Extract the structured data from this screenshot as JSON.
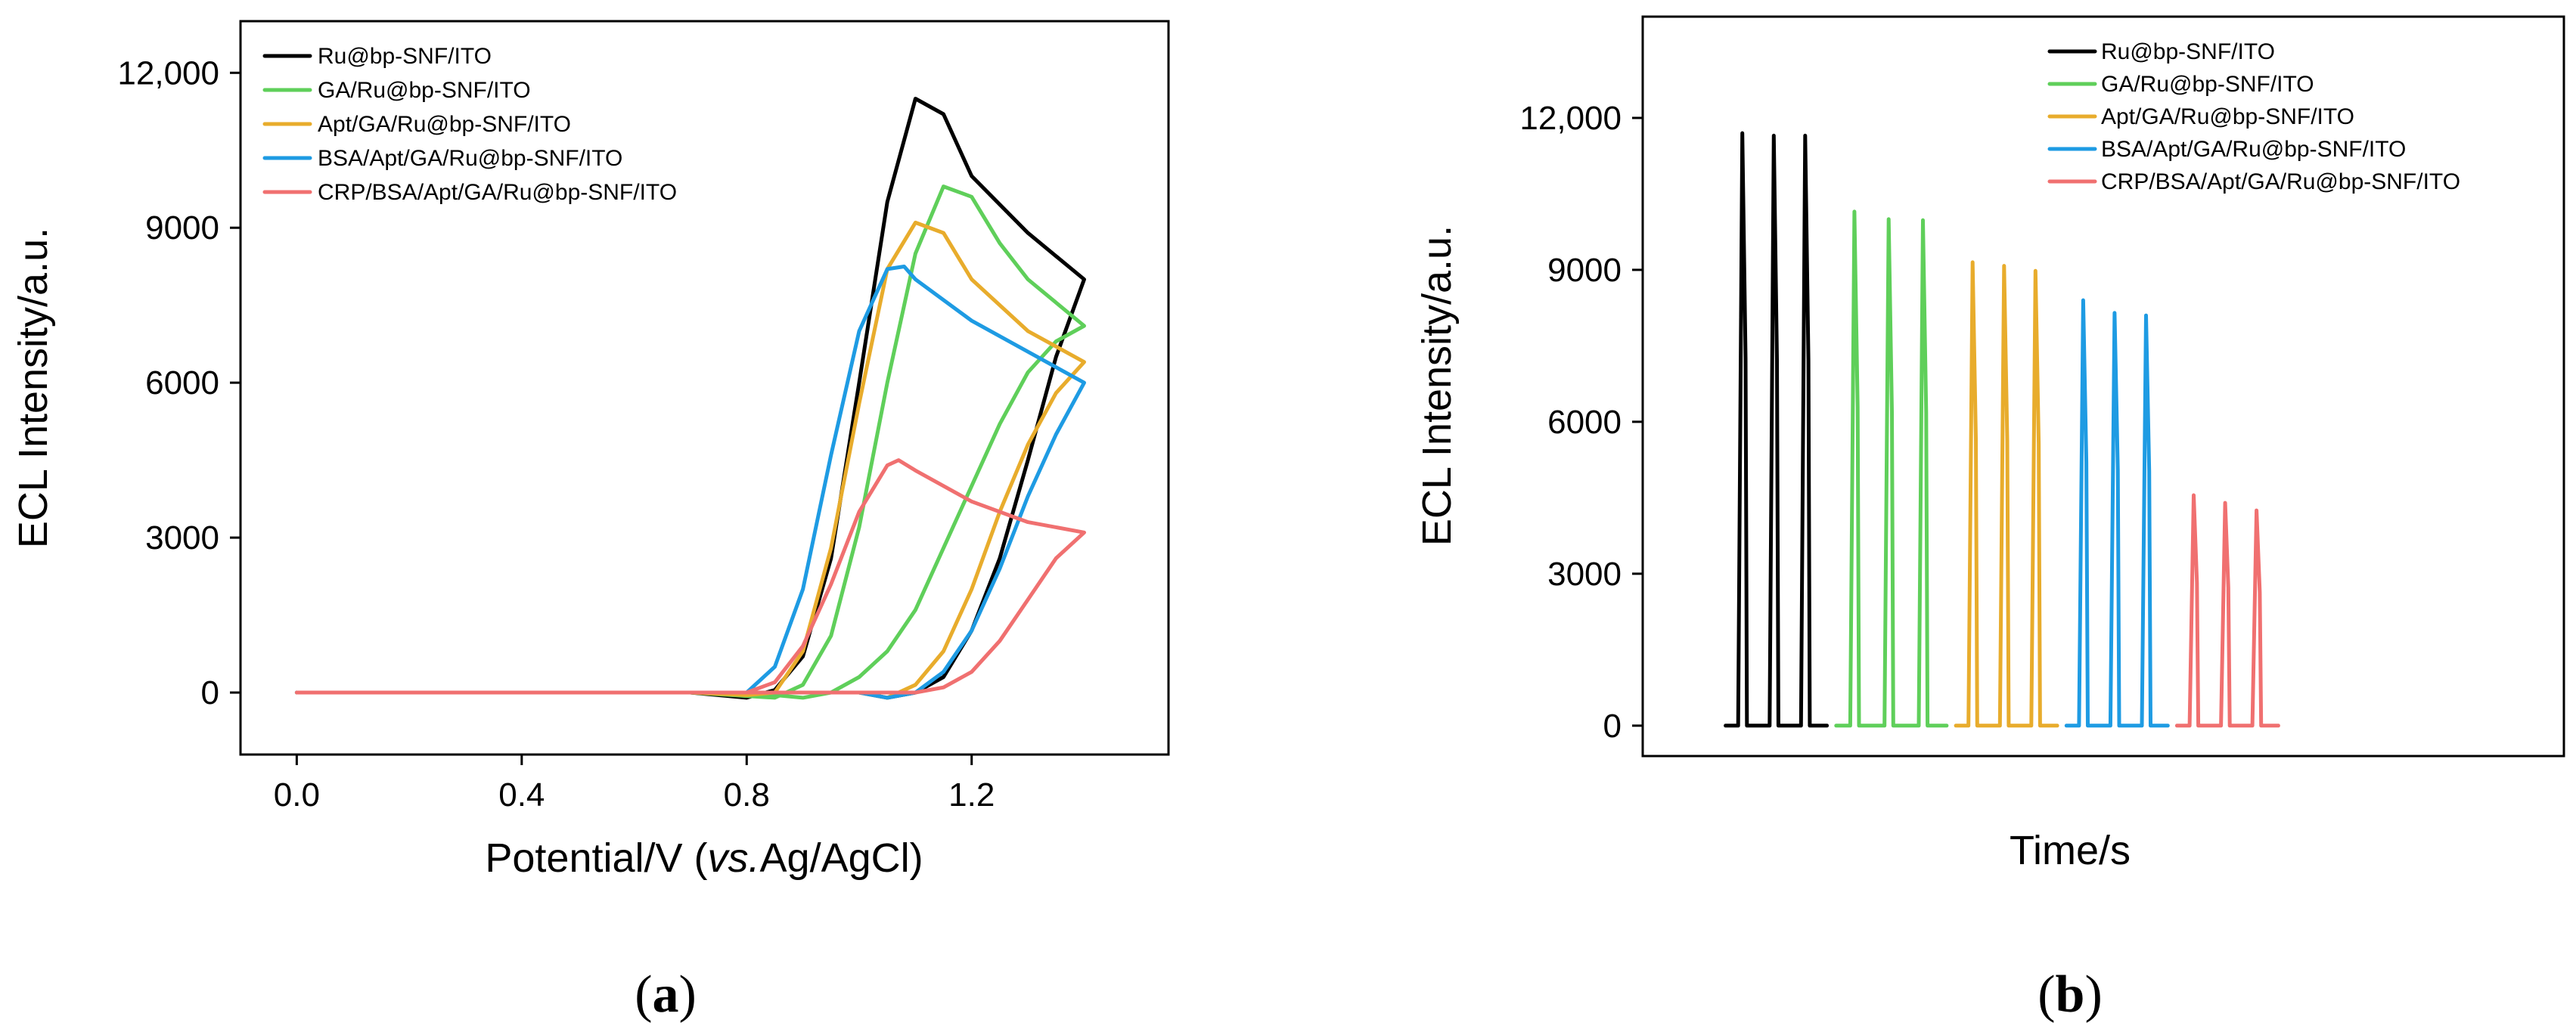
{
  "chart_data": [
    {
      "panel": "(a)",
      "panel_letter": "a",
      "type": "line",
      "title": "",
      "xlabel_pre": "Potential/V (",
      "xlabel_italic": "vs.",
      "xlabel_post": "Ag/AgCl)",
      "ylabel": "ECL Intensity/a.u.",
      "xlim": [
        -0.1,
        1.55
      ],
      "ylim": [
        -1200,
        13000
      ],
      "xticks": [
        0.0,
        0.4,
        0.8,
        1.2
      ],
      "xtick_labels": [
        "0.0",
        "0.4",
        "0.8",
        "1.2"
      ],
      "yticks": [
        0,
        3000,
        6000,
        9000,
        12000
      ],
      "ytick_labels": [
        "0",
        "3000",
        "6000",
        "9000",
        "12,000"
      ],
      "legend_position": "top-left",
      "series": [
        {
          "name": "Ru@bp-SNF/ITO",
          "color": "#000000",
          "forward": [
            [
              0.0,
              0
            ],
            [
              0.7,
              0
            ],
            [
              0.8,
              -100
            ],
            [
              0.85,
              50
            ],
            [
              0.9,
              700
            ],
            [
              0.95,
              2600
            ],
            [
              1.0,
              6000
            ],
            [
              1.05,
              9500
            ],
            [
              1.1,
              11500
            ],
            [
              1.15,
              11200
            ],
            [
              1.2,
              10000
            ],
            [
              1.3,
              8900
            ],
            [
              1.4,
              8000
            ]
          ],
          "reverse": [
            [
              1.4,
              8000
            ],
            [
              1.35,
              6500
            ],
            [
              1.3,
              4500
            ],
            [
              1.25,
              2600
            ],
            [
              1.2,
              1200
            ],
            [
              1.15,
              300
            ],
            [
              1.1,
              0
            ],
            [
              1.05,
              -100
            ],
            [
              1.0,
              0
            ],
            [
              0.7,
              0
            ],
            [
              0.0,
              0
            ]
          ]
        },
        {
          "name": "GA/Ru@bp-SNF/ITO",
          "color": "#5fcf5a",
          "forward": [
            [
              0.0,
              0
            ],
            [
              0.7,
              0
            ],
            [
              0.85,
              -100
            ],
            [
              0.9,
              150
            ],
            [
              0.95,
              1100
            ],
            [
              1.0,
              3200
            ],
            [
              1.05,
              6000
            ],
            [
              1.1,
              8500
            ],
            [
              1.15,
              9800
            ],
            [
              1.2,
              9600
            ],
            [
              1.25,
              8700
            ],
            [
              1.3,
              8000
            ],
            [
              1.4,
              7100
            ]
          ],
          "reverse": [
            [
              1.4,
              7100
            ],
            [
              1.35,
              6800
            ],
            [
              1.3,
              6200
            ],
            [
              1.25,
              5200
            ],
            [
              1.2,
              4000
            ],
            [
              1.15,
              2800
            ],
            [
              1.1,
              1600
            ],
            [
              1.05,
              800
            ],
            [
              1.0,
              300
            ],
            [
              0.95,
              0
            ],
            [
              0.9,
              -100
            ],
            [
              0.85,
              -50
            ],
            [
              0.7,
              0
            ],
            [
              0.0,
              0
            ]
          ]
        },
        {
          "name": "Apt/GA/Ru@bp-SNF/ITO",
          "color": "#e8ac2c",
          "forward": [
            [
              0.0,
              0
            ],
            [
              0.7,
              0
            ],
            [
              0.8,
              -50
            ],
            [
              0.85,
              0
            ],
            [
              0.9,
              800
            ],
            [
              0.95,
              2800
            ],
            [
              1.0,
              5600
            ],
            [
              1.05,
              8200
            ],
            [
              1.1,
              9100
            ],
            [
              1.15,
              8900
            ],
            [
              1.2,
              8000
            ],
            [
              1.3,
              7000
            ],
            [
              1.4,
              6400
            ]
          ],
          "reverse": [
            [
              1.4,
              6400
            ],
            [
              1.35,
              5800
            ],
            [
              1.3,
              4800
            ],
            [
              1.25,
              3500
            ],
            [
              1.2,
              2000
            ],
            [
              1.15,
              800
            ],
            [
              1.1,
              150
            ],
            [
              1.05,
              -100
            ],
            [
              1.0,
              0
            ],
            [
              0.7,
              0
            ],
            [
              0.0,
              0
            ]
          ]
        },
        {
          "name": "BSA/Apt/GA/Ru@bp-SNF/ITO",
          "color": "#1e9be3",
          "forward": [
            [
              0.0,
              0
            ],
            [
              0.7,
              0
            ],
            [
              0.8,
              0
            ],
            [
              0.85,
              500
            ],
            [
              0.9,
              2000
            ],
            [
              0.95,
              4600
            ],
            [
              1.0,
              7000
            ],
            [
              1.05,
              8200
            ],
            [
              1.08,
              8250
            ],
            [
              1.1,
              8000
            ],
            [
              1.2,
              7200
            ],
            [
              1.3,
              6600
            ],
            [
              1.4,
              6000
            ]
          ],
          "reverse": [
            [
              1.4,
              6000
            ],
            [
              1.35,
              5000
            ],
            [
              1.3,
              3800
            ],
            [
              1.25,
              2400
            ],
            [
              1.2,
              1200
            ],
            [
              1.15,
              400
            ],
            [
              1.1,
              0
            ],
            [
              1.05,
              -100
            ],
            [
              1.0,
              0
            ],
            [
              0.7,
              0
            ],
            [
              0.0,
              0
            ]
          ]
        },
        {
          "name": "CRP/BSA/Apt/GA/Ru@bp-SNF/ITO",
          "color": "#f07070",
          "forward": [
            [
              0.0,
              0
            ],
            [
              0.7,
              0
            ],
            [
              0.8,
              0
            ],
            [
              0.85,
              200
            ],
            [
              0.9,
              900
            ],
            [
              0.95,
              2100
            ],
            [
              1.0,
              3500
            ],
            [
              1.05,
              4400
            ],
            [
              1.07,
              4500
            ],
            [
              1.1,
              4300
            ],
            [
              1.2,
              3700
            ],
            [
              1.3,
              3300
            ],
            [
              1.4,
              3100
            ]
          ],
          "reverse": [
            [
              1.4,
              3100
            ],
            [
              1.35,
              2600
            ],
            [
              1.3,
              1800
            ],
            [
              1.25,
              1000
            ],
            [
              1.2,
              400
            ],
            [
              1.15,
              100
            ],
            [
              1.1,
              0
            ],
            [
              1.0,
              0
            ],
            [
              0.7,
              0
            ],
            [
              0.0,
              0
            ]
          ]
        }
      ]
    },
    {
      "panel": "(b)",
      "panel_letter": "b",
      "type": "line",
      "title": "",
      "xlabel": "Time/s",
      "ylabel": "ECL Intensity/a.u.",
      "xlim": [
        0,
        100
      ],
      "ylim": [
        -600,
        14000
      ],
      "yticks": [
        0,
        3000,
        6000,
        9000,
        12000
      ],
      "ytick_labels": [
        "0",
        "3000",
        "6000",
        "9000",
        "12,000"
      ],
      "legend_position": "top-right",
      "series": [
        {
          "name": "Ru@bp-SNF/ITO",
          "color": "#000000",
          "start": 9,
          "end": 20,
          "peaks": [
            11700,
            11650,
            11650
          ]
        },
        {
          "name": "GA/Ru@bp-SNF/ITO",
          "color": "#5fcf5a",
          "start": 21,
          "end": 33,
          "peaks": [
            10150,
            10000,
            9980
          ]
        },
        {
          "name": "Apt/GA/Ru@bp-SNF/ITO",
          "color": "#e8ac2c",
          "start": 34,
          "end": 45,
          "peaks": [
            9150,
            9080,
            8980
          ]
        },
        {
          "name": "BSA/Apt/GA/Ru@bp-SNF/ITO",
          "color": "#1e9be3",
          "start": 46,
          "end": 57,
          "peaks": [
            8400,
            8150,
            8100
          ]
        },
        {
          "name": "CRP/BSA/Apt/GA/Ru@bp-SNF/ITO",
          "color": "#f07070",
          "start": 58,
          "end": 69,
          "peaks": [
            4550,
            4400,
            4250
          ]
        }
      ]
    }
  ]
}
